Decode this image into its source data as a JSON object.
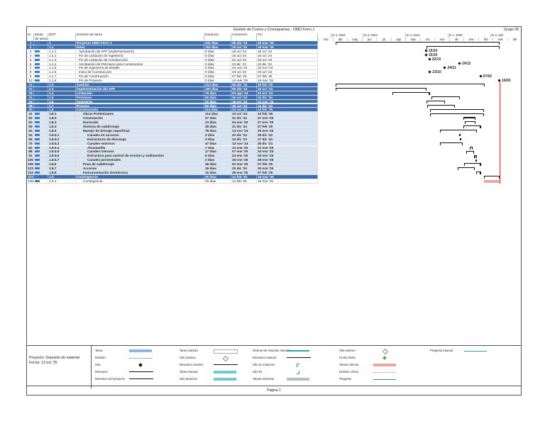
{
  "header": {
    "title": "Gestión de Costos y Cronogramas - OMO Ferro 1",
    "group": "Grupo 08"
  },
  "columns": {
    "id": "Id",
    "mode": "Modo de tarea",
    "edt": "EDT",
    "name": "Nombre de tarea",
    "dur": "Duración",
    "start": "Comienzo",
    "end": "Fin"
  },
  "timeline": {
    "years": [
      "tri 2, 2024",
      "tri 3, 2024",
      "tri 4, 2024",
      "tri 1, 2025",
      "tri 2, 202"
    ],
    "months": [
      "mar",
      "abr",
      "may",
      "jun",
      "jul",
      "ago",
      "sep",
      "oct",
      "nov",
      "dic",
      "ene",
      "feb",
      "mar",
      "abr"
    ]
  },
  "tasks": [
    {
      "id": "1",
      "edt": "1",
      "name": "Proyecto OMO Ferro 1",
      "dur": "342 días",
      "start": "08 abr '24",
      "end": "16 mar '25",
      "style": "sum"
    },
    {
      "id": "2",
      "edt": "1.1",
      "name": "Hitos",
      "dur": "152 días",
      "start": "15 oct '24",
      "end": "16 mar '25",
      "style": "sum"
    },
    {
      "id": "3",
      "edt": "1.1.1",
      "name": "Aprobación de APF (Implementación)",
      "dur": "0 días",
      "start": "15 oct '24",
      "end": "15 oct '24",
      "style": "",
      "ms": "15/10"
    },
    {
      "id": "4",
      "edt": "1.1.2",
      "name": "Fin de Licitación de Ingeniería",
      "dur": "0 días",
      "start": "15 oct '24",
      "end": "15 oct '24",
      "style": "",
      "ms": "15/10"
    },
    {
      "id": "5",
      "edt": "1.1.3",
      "name": "Fin de Licitación de Construcción",
      "dur": "0 días",
      "start": "22 oct '24",
      "end": "22 oct '24",
      "style": "",
      "ms": "22/10"
    },
    {
      "id": "6",
      "edt": "1.1.4",
      "name": "Aprobación de Permisos para Construcción",
      "dur": "0 días",
      "start": "24 dic '24",
      "end": "24 dic '24",
      "style": "",
      "ms": "24/12"
    },
    {
      "id": "7",
      "edt": "1.1.5",
      "name": "Fin de Ingeniería de Detalle",
      "dur": "0 días",
      "start": "24 nov '24",
      "end": "24 nov '24",
      "style": "",
      "ms": "24/11"
    },
    {
      "id": "8",
      "edt": "1.1.6",
      "name": "Inicio de Construcción",
      "dur": "0 días",
      "start": "23 oct '24",
      "end": "23 oct '24",
      "style": "",
      "ms": "23/10"
    },
    {
      "id": "9",
      "edt": "1.1.7",
      "name": "Fin de Construcción",
      "dur": "0 días",
      "start": "07 feb '25",
      "end": "07 feb '25",
      "style": "",
      "ms": "07/02"
    },
    {
      "id": "10",
      "edt": "1.1.8",
      "name": "Fin de Proyecto",
      "dur": "0 días",
      "start": "16 mar '25",
      "end": "16 mar '25",
      "style": "",
      "ms": "16/03"
    },
    {
      "id": "11",
      "edt": "1.2",
      "name": "Gestión",
      "dur": "313 días",
      "start": "08 abr '24",
      "end": "15 feb '25",
      "style": "sum"
    },
    {
      "id": "21",
      "edt": "1.3",
      "name": "Implementación del APF",
      "dur": "190 días",
      "start": "08 abr '24",
      "end": "15 oct '24",
      "style": "sum"
    },
    {
      "id": "28",
      "edt": "1.4",
      "name": "Licitación",
      "dur": "79 días",
      "start": "04 ago '24",
      "end": "22 oct '24",
      "style": "sum"
    },
    {
      "id": "31",
      "edt": "1.5",
      "name": "Permisos",
      "dur": "60 días",
      "start": "25 oct '24",
      "end": "24 dic '24",
      "style": "sum"
    },
    {
      "id": "34",
      "edt": "1.6",
      "name": "Ingeniería",
      "dur": "40 días",
      "start": "15 oct '24",
      "end": "24 nov '24",
      "style": "sum"
    },
    {
      "id": "36",
      "edt": "1.7",
      "name": "Procura",
      "dur": "60 días",
      "start": "16 oct '24",
      "end": "14 dic '24",
      "style": "sum"
    },
    {
      "id": "40",
      "edt": "1.8",
      "name": "Construcción",
      "dur": "114 días",
      "start": "23 oct '24",
      "end": "14 feb '25",
      "style": "sum"
    },
    {
      "id": "41",
      "edt": "1.8.1",
      "name": "Obras Preliminares",
      "dur": "114 días",
      "start": "23 oct '24",
      "end": "14 feb '25",
      "style": "sum2",
      "ind": 1
    },
    {
      "id": "50",
      "edt": "1.8.2",
      "name": "Cimentación",
      "dur": "27 días",
      "start": "31 dic '24",
      "end": "27 ene '25",
      "style": "sum2",
      "ind": 1
    },
    {
      "id": "53",
      "edt": "1.8.3",
      "name": "Enrocado",
      "dur": "23 días",
      "start": "04 ene '25",
      "end": "27 ene '25",
      "style": "sum2",
      "ind": 1
    },
    {
      "id": "55",
      "edt": "1.8.4",
      "name": "Sistema de subdrenaje",
      "dur": "38 días",
      "start": "31 dic '24",
      "end": "07 feb '25",
      "style": "sum2",
      "ind": 1
    },
    {
      "id": "63",
      "edt": "1.8.5",
      "name": "Manejo de drenaje superficial",
      "dur": "78 días",
      "start": "13 nov '24",
      "end": "30 ene '25",
      "style": "sum2",
      "ind": 1
    },
    {
      "id": "64",
      "edt": "1.8.5.1",
      "name": "Canales en accesos",
      "dur": "3 días",
      "start": "22 dic '24",
      "end": "25 dic '24",
      "style": "sum2",
      "ind": 2
    },
    {
      "id": "69",
      "edt": "1.8.5.2",
      "name": "Estructuras de descarga",
      "dur": "3 días",
      "start": "24 dic '24",
      "end": "27 dic '24",
      "style": "sum2",
      "ind": 2
    },
    {
      "id": "75",
      "edt": "1.8.5.3",
      "name": "Canales externos",
      "dur": "47 días",
      "start": "13 nov '24",
      "end": "30 dic '24",
      "style": "sum2",
      "ind": 2
    },
    {
      "id": "82",
      "edt": "1.8.5.4",
      "name": "Alcantarilla",
      "dur": "7 días",
      "start": "14 ene '25",
      "end": "21 ene '25",
      "style": "sum2",
      "ind": 2
    },
    {
      "id": "88",
      "edt": "1.8.5.5",
      "name": "Canales internos",
      "dur": "17 días",
      "start": "07 ene '25",
      "end": "24 ene '25",
      "style": "sum2",
      "ind": 2
    },
    {
      "id": "91",
      "edt": "1.8.5.6",
      "name": "Estructura para control de erosion y sedimentos",
      "dur": "6 días",
      "start": "24 ene '25",
      "end": "30 ene '25",
      "style": "sum2",
      "ind": 2
    },
    {
      "id": "100",
      "edt": "1.8.5.7",
      "name": "Canales perimetrales",
      "dur": "2 días",
      "start": "26 ene '25",
      "end": "28 ene '25",
      "style": "sum2",
      "ind": 2
    },
    {
      "id": "105",
      "edt": "1.8.6",
      "name": "Poza de subdrenaje",
      "dur": "36 días",
      "start": "02 ene '25",
      "end": "07 feb '25",
      "style": "sum2",
      "ind": 1
    },
    {
      "id": "123",
      "edt": "1.8.7",
      "name": "Accesos",
      "dur": "36 días",
      "start": "20 dic '24",
      "end": "25 ene '25",
      "style": "sum2",
      "ind": 1
    },
    {
      "id": "134",
      "edt": "1.8.8",
      "name": "Instrumentación Geotécnica",
      "dur": "10 días",
      "start": "28 ene '25",
      "end": "07 feb '25",
      "style": "sum2",
      "ind": 1
    },
    {
      "id": "137",
      "edt": "1.9",
      "name": "Contingencia",
      "dur": "30 días",
      "start": "14 feb '25",
      "end": "16 mar '25",
      "style": "sum"
    },
    {
      "id": "138",
      "edt": "1.9.1",
      "name": "Contingencia",
      "dur": "30 días",
      "start": "14 feb '25",
      "end": "16 mar '25",
      "style": "",
      "ind": 1
    }
  ],
  "legend": {
    "project": "Proyecto: Deposito de material",
    "date": "Fecha: 13 oct '25",
    "items": [
      [
        "Tarea",
        "División",
        "Hito",
        "Resumen",
        "Resumen del proyecto"
      ],
      [
        "Tarea inactiva",
        "Hito inactivo",
        "Resumen inactivo",
        "Tarea manual",
        "sólo duración"
      ],
      [
        "Informe de resumen manual",
        "Resumen manual",
        "sólo el comienzo",
        "sólo fin",
        "Tareas externas"
      ],
      [
        "Hito externo",
        "Fecha límite",
        "Tareas críticas",
        "División crítica",
        "Progreso"
      ],
      [
        "Progreso manual"
      ]
    ]
  },
  "footer": {
    "page": "Página 1"
  },
  "colors": {
    "summary": "#3b6fb2",
    "subsummary": "#dbe6f4",
    "critical": "#f4a3a3",
    "today": "#e53935"
  }
}
